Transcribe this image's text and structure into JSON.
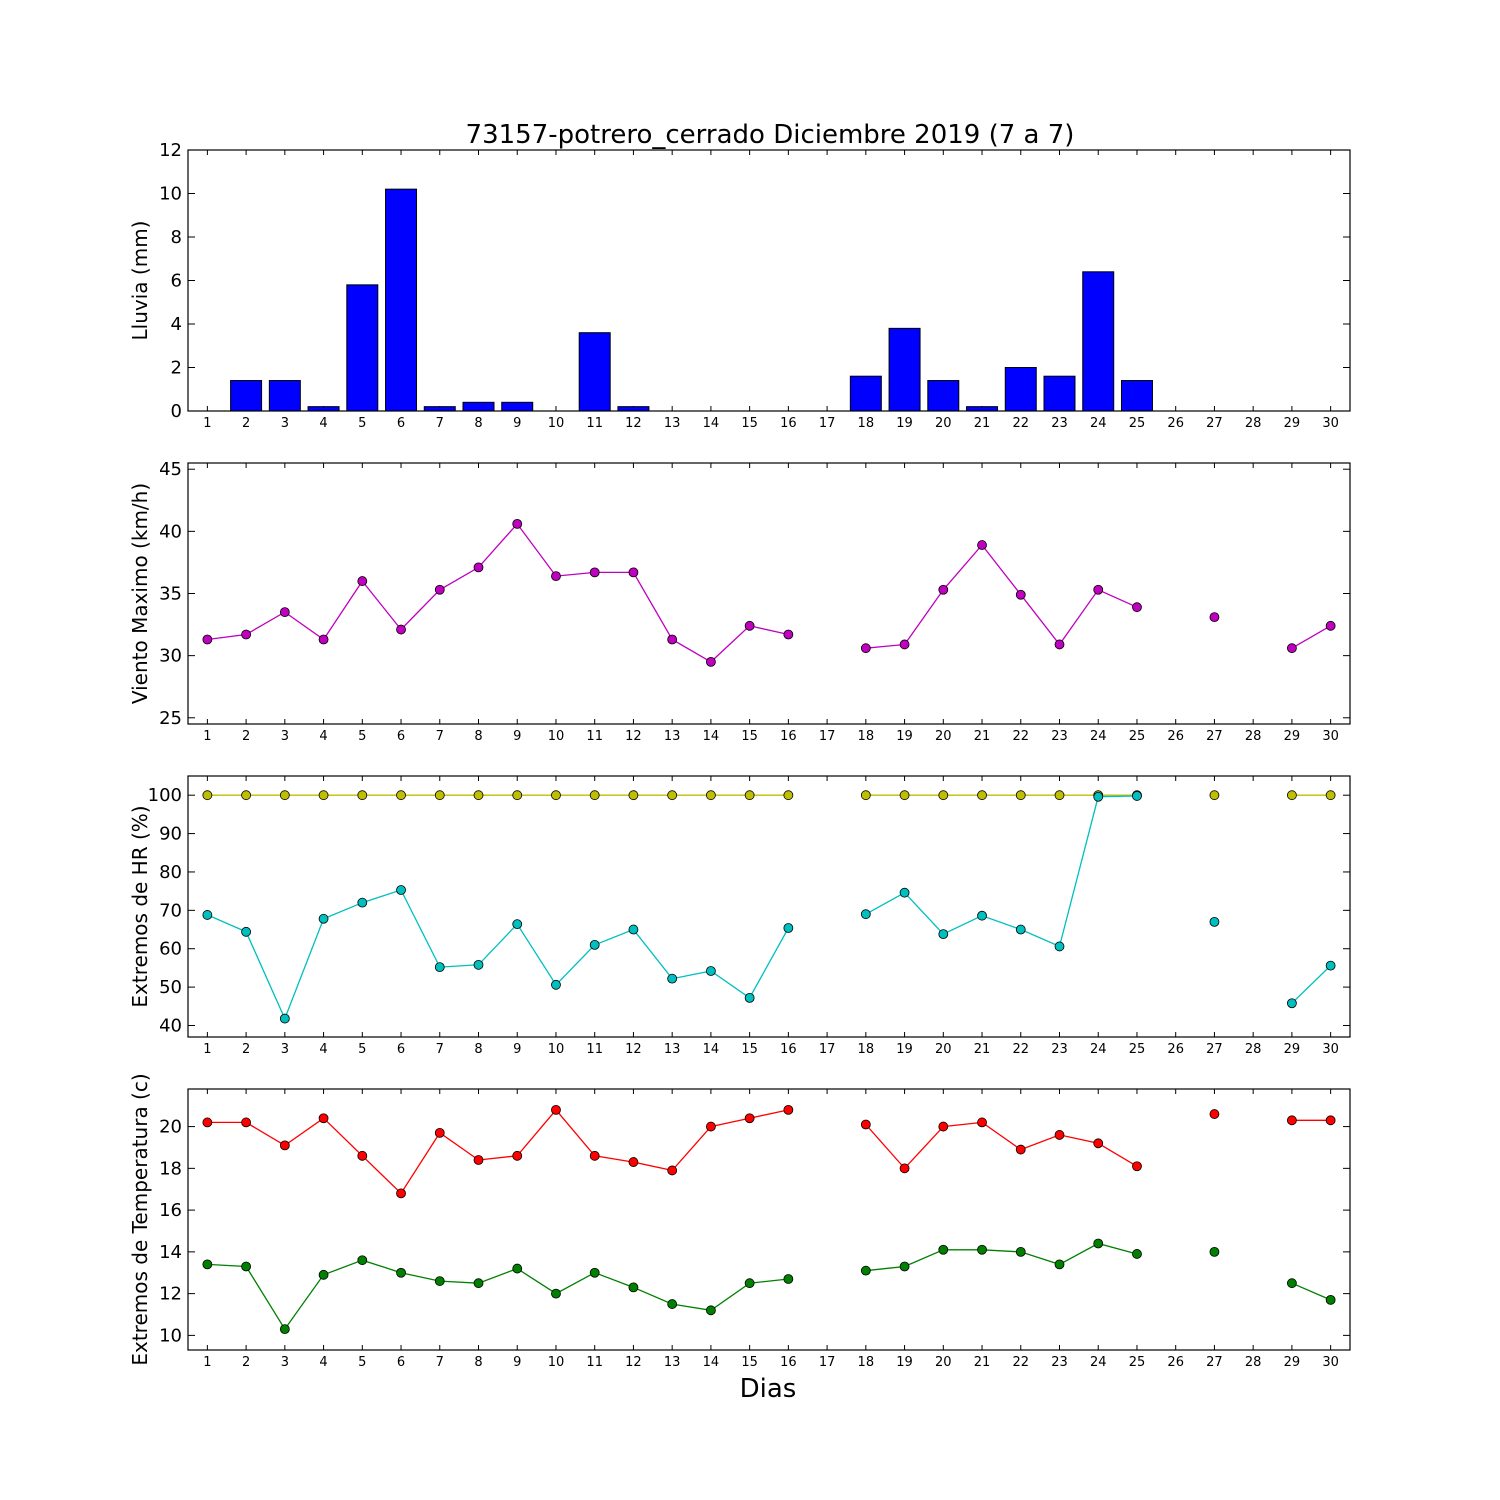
{
  "title": "73157-potrero_cerrado Diciembre 2019  (7 a 7)",
  "xlabel": "Dias",
  "chart_data": [
    {
      "type": "bar",
      "ylabel": "Lluvia (mm)",
      "ylim": [
        0,
        12
      ],
      "yticks": [
        0,
        2,
        4,
        6,
        8,
        10,
        12
      ],
      "x": [
        1,
        2,
        3,
        4,
        5,
        6,
        7,
        8,
        9,
        10,
        11,
        12,
        13,
        14,
        15,
        16,
        17,
        18,
        19,
        20,
        21,
        22,
        23,
        24,
        25,
        26,
        27,
        28,
        29,
        30
      ],
      "xtick_labels": [
        "1",
        "2",
        "3",
        "4",
        "5",
        "6",
        "7",
        "8",
        "9",
        "10",
        "11",
        "12",
        "13",
        "14",
        "15",
        "16",
        "17",
        "18",
        "19",
        "20",
        "21",
        "22",
        "23",
        "24",
        "25",
        "26",
        "27",
        "28",
        "29",
        "30"
      ],
      "series": [
        {
          "color": "#0000ff",
          "values": [
            0,
            1.4,
            1.4,
            0.2,
            5.8,
            10.2,
            0.2,
            0.4,
            0.4,
            0,
            3.6,
            0.2,
            0,
            0,
            0,
            0,
            null,
            1.6,
            3.8,
            1.4,
            0.2,
            2.0,
            1.6,
            6.4,
            1.4,
            0,
            0,
            0,
            0,
            0
          ]
        }
      ]
    },
    {
      "type": "line",
      "ylabel": "Viento Maximo (km/h)",
      "ylim": [
        24.5,
        45.5
      ],
      "yticks": [
        25,
        30,
        35,
        40,
        45
      ],
      "x": [
        1,
        2,
        3,
        4,
        5,
        6,
        7,
        8,
        9,
        10,
        11,
        12,
        13,
        14,
        15,
        16,
        17,
        18,
        19,
        20,
        21,
        22,
        23,
        24,
        25,
        26,
        27,
        28,
        29,
        30
      ],
      "xtick_labels": [
        "1",
        "2",
        "3",
        "4",
        "5",
        "6",
        "7",
        "8",
        "9",
        "10",
        "11",
        "12",
        "13",
        "14",
        "15",
        "16",
        "17",
        "18",
        "19",
        "20",
        "21",
        "22",
        "23",
        "24",
        "25",
        "26",
        "27",
        "28",
        "29",
        "30"
      ],
      "series": [
        {
          "color": "#bf00bf",
          "values": [
            31.3,
            31.7,
            33.5,
            31.3,
            36.0,
            32.1,
            35.3,
            37.1,
            40.6,
            36.4,
            36.7,
            36.7,
            31.3,
            29.5,
            32.4,
            31.7,
            null,
            30.6,
            30.9,
            35.3,
            38.9,
            34.9,
            30.9,
            35.3,
            33.9,
            null,
            33.1,
            null,
            30.6,
            32.4
          ]
        }
      ]
    },
    {
      "type": "line",
      "ylabel": "Extremos de HR (%)",
      "ylim": [
        37,
        105
      ],
      "yticks": [
        40,
        50,
        60,
        70,
        80,
        90,
        100
      ],
      "x": [
        1,
        2,
        3,
        4,
        5,
        6,
        7,
        8,
        9,
        10,
        11,
        12,
        13,
        14,
        15,
        16,
        17,
        18,
        19,
        20,
        21,
        22,
        23,
        24,
        25,
        26,
        27,
        28,
        29,
        30
      ],
      "xtick_labels": [
        "1",
        "2",
        "3",
        "4",
        "5",
        "6",
        "7",
        "8",
        "9",
        "10",
        "11",
        "12",
        "13",
        "14",
        "15",
        "16",
        "17",
        "18",
        "19",
        "20",
        "21",
        "22",
        "23",
        "24",
        "25",
        "26",
        "27",
        "28",
        "29",
        "30"
      ],
      "series": [
        {
          "color": "#bfbf00",
          "values": [
            100,
            100,
            100,
            100,
            100,
            100,
            100,
            100,
            100,
            100,
            100,
            100,
            100,
            100,
            100,
            100,
            null,
            100,
            100,
            100,
            100,
            100,
            100,
            100,
            100,
            null,
            100,
            null,
            100,
            100
          ]
        },
        {
          "color": "#00bfbf",
          "values": [
            68.8,
            64.4,
            41.8,
            67.8,
            72.0,
            75.3,
            55.2,
            55.8,
            66.4,
            50.6,
            61.0,
            65.0,
            52.2,
            54.2,
            47.2,
            65.4,
            null,
            69.0,
            74.6,
            63.8,
            68.6,
            65.0,
            60.6,
            99.6,
            99.8,
            null,
            67.0,
            null,
            45.8,
            55.6
          ]
        }
      ]
    },
    {
      "type": "line",
      "ylabel": "Extremos de Temperatura (c)",
      "ylim": [
        9.3,
        21.8
      ],
      "yticks": [
        10,
        12,
        14,
        16,
        18,
        20
      ],
      "x": [
        1,
        2,
        3,
        4,
        5,
        6,
        7,
        8,
        9,
        10,
        11,
        12,
        13,
        14,
        15,
        16,
        17,
        18,
        19,
        20,
        21,
        22,
        23,
        24,
        25,
        26,
        27,
        28,
        29,
        30
      ],
      "xtick_labels": [
        "1",
        "2",
        "3",
        "4",
        "5",
        "6",
        "7",
        "8",
        "9",
        "10",
        "11",
        "12",
        "13",
        "14",
        "15",
        "16",
        "17",
        "18",
        "19",
        "20",
        "21",
        "22",
        "23",
        "24",
        "25",
        "26",
        "27",
        "28",
        "29",
        "30"
      ],
      "series": [
        {
          "color": "#ff0000",
          "values": [
            20.2,
            20.2,
            19.1,
            20.4,
            18.6,
            16.8,
            19.7,
            18.4,
            18.6,
            20.8,
            18.6,
            18.3,
            17.9,
            20.0,
            20.4,
            20.8,
            null,
            20.1,
            18.0,
            20.0,
            20.2,
            18.9,
            19.6,
            19.2,
            18.1,
            null,
            20.6,
            null,
            20.3,
            20.3
          ]
        },
        {
          "color": "#008000",
          "values": [
            13.4,
            13.3,
            10.3,
            12.9,
            13.6,
            13.0,
            12.6,
            12.5,
            13.2,
            12.0,
            13.0,
            12.3,
            11.5,
            11.2,
            12.5,
            12.7,
            null,
            13.1,
            13.3,
            14.1,
            14.1,
            14.0,
            13.4,
            14.4,
            13.9,
            null,
            14.0,
            null,
            12.5,
            11.7
          ]
        }
      ]
    }
  ]
}
